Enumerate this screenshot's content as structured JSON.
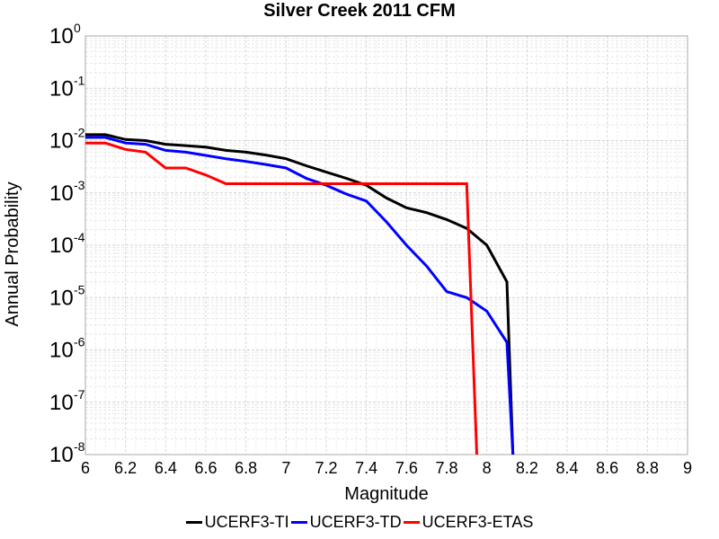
{
  "chart_data": {
    "type": "line",
    "title": "Silver Creek 2011 CFM",
    "xlabel": "Magnitude",
    "ylabel": "Annual Probability",
    "xlim": [
      6,
      9
    ],
    "ylim": [
      1e-08,
      1
    ],
    "yscale": "log",
    "grid": true,
    "legend_position": "bottom-center",
    "x_ticks": [
      "6",
      "6.2",
      "6.4",
      "6.6",
      "6.8",
      "7",
      "7.2",
      "7.4",
      "7.6",
      "7.8",
      "8",
      "8.2",
      "8.4",
      "8.6",
      "8.8",
      "9"
    ],
    "y_ticks": [
      {
        "base": "10",
        "exp": "0",
        "value": 1
      },
      {
        "base": "10",
        "exp": "-1",
        "value": 0.1
      },
      {
        "base": "10",
        "exp": "-2",
        "value": 0.01
      },
      {
        "base": "10",
        "exp": "-3",
        "value": 0.001
      },
      {
        "base": "10",
        "exp": "-4",
        "value": 0.0001
      },
      {
        "base": "10",
        "exp": "-5",
        "value": 1e-05
      },
      {
        "base": "10",
        "exp": "-6",
        "value": 1e-06
      },
      {
        "base": "10",
        "exp": "-7",
        "value": 1e-07
      },
      {
        "base": "10",
        "exp": "-8",
        "value": 1e-08
      }
    ],
    "series": [
      {
        "name": "UCERF3-TI",
        "color": "#000000",
        "x": [
          6.0,
          6.1,
          6.2,
          6.3,
          6.4,
          6.5,
          6.6,
          6.7,
          6.8,
          6.9,
          7.0,
          7.1,
          7.2,
          7.3,
          7.4,
          7.5,
          7.6,
          7.7,
          7.8,
          7.9,
          8.0,
          8.1,
          8.13
        ],
        "y": [
          0.013,
          0.013,
          0.0105,
          0.01,
          0.0085,
          0.008,
          0.0075,
          0.0065,
          0.006,
          0.0053,
          0.0045,
          0.0033,
          0.0025,
          0.0019,
          0.0014,
          0.0008,
          0.00052,
          0.00042,
          0.00031,
          0.00021,
          0.0001,
          2e-05,
          1e-08
        ]
      },
      {
        "name": "UCERF3-TD",
        "color": "#0000ff",
        "x": [
          6.0,
          6.1,
          6.2,
          6.3,
          6.4,
          6.5,
          6.6,
          6.7,
          6.8,
          6.9,
          7.0,
          7.1,
          7.2,
          7.3,
          7.4,
          7.5,
          7.6,
          7.7,
          7.8,
          7.9,
          8.0,
          8.1,
          8.13
        ],
        "y": [
          0.0115,
          0.0115,
          0.009,
          0.0085,
          0.0065,
          0.006,
          0.0052,
          0.0045,
          0.004,
          0.0035,
          0.003,
          0.0019,
          0.0014,
          0.00095,
          0.0007,
          0.00028,
          0.0001,
          4e-05,
          1.3e-05,
          1e-05,
          5.5e-06,
          1.4e-06,
          1e-08
        ]
      },
      {
        "name": "UCERF3-ETAS",
        "color": "#ff0000",
        "x": [
          6.0,
          6.1,
          6.2,
          6.3,
          6.4,
          6.5,
          6.6,
          6.7,
          6.8,
          6.9,
          7.0,
          7.1,
          7.2,
          7.3,
          7.4,
          7.5,
          7.6,
          7.7,
          7.8,
          7.9,
          7.95
        ],
        "y": [
          0.009,
          0.009,
          0.0068,
          0.006,
          0.003,
          0.003,
          0.0022,
          0.0015,
          0.0015,
          0.0015,
          0.0015,
          0.0015,
          0.0015,
          0.0015,
          0.0015,
          0.0015,
          0.0015,
          0.0015,
          0.0015,
          0.0015,
          1e-08
        ]
      }
    ]
  }
}
